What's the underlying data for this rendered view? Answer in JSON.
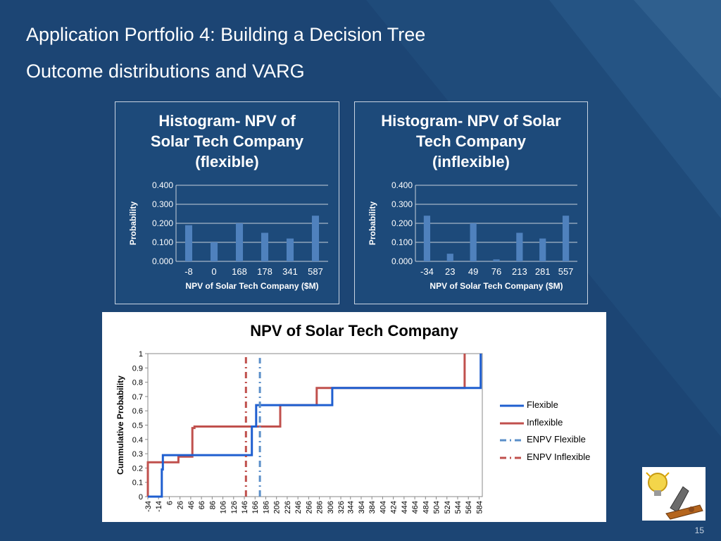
{
  "slide": {
    "title": "Application Portfolio 4: Building a Decision Tree",
    "subtitle": "Outcome distributions and VARG",
    "page_number": "15",
    "colors": {
      "background": "#1c4574",
      "bar": "#4f81bd",
      "flexible_line": "#1f5fd0",
      "inflexible_line": "#c0504d",
      "enpv_flexible": "#5b8fc9",
      "enpv_inflexible": "#c0504d"
    }
  },
  "chart_data": [
    {
      "type": "bar",
      "title": "Histogram- NPV of Solar Tech Company (flexible)",
      "xlabel": "NPV of Solar Tech Company ($M)",
      "ylabel": "Probability",
      "categories": [
        "-8",
        "0",
        "168",
        "178",
        "341",
        "587"
      ],
      "values": [
        0.19,
        0.1,
        0.2,
        0.15,
        0.12,
        0.24
      ],
      "ylim": [
        0,
        0.4
      ],
      "yticks": [
        "0.000",
        "0.100",
        "0.200",
        "0.300",
        "0.400"
      ],
      "grid": true
    },
    {
      "type": "bar",
      "title": "Histogram- NPV of Solar Tech Company (inflexible)",
      "xlabel": "NPV of Solar Tech Company ($M)",
      "ylabel": "Probability",
      "categories": [
        "-34",
        "23",
        "49",
        "76",
        "213",
        "281",
        "557"
      ],
      "values": [
        0.24,
        0.04,
        0.2,
        0.01,
        0.15,
        0.12,
        0.24
      ],
      "ylim": [
        0,
        0.4
      ],
      "yticks": [
        "0.000",
        "0.100",
        "0.200",
        "0.300",
        "0.400"
      ],
      "grid": true
    },
    {
      "type": "line",
      "title": "NPV of Solar Tech Company",
      "ylabel": "Cummulative Probability",
      "xticks": [
        "-34",
        "-14",
        "6",
        "26",
        "46",
        "66",
        "86",
        "106",
        "126",
        "146",
        "166",
        "186",
        "206",
        "226",
        "246",
        "266",
        "286",
        "306",
        "326",
        "344",
        "364",
        "384",
        "404",
        "424",
        "444",
        "464",
        "484",
        "504",
        "524",
        "544",
        "564",
        "584"
      ],
      "yticks": [
        "0",
        "0.1",
        "0.2",
        "0.3",
        "0.4",
        "0.5",
        "0.6",
        "0.7",
        "0.8",
        "0.9",
        "1"
      ],
      "xlim": [
        -34,
        590
      ],
      "ylim": [
        0,
        1
      ],
      "legend_position": "right",
      "series": [
        {
          "name": "Flexible",
          "style": "solid",
          "x": [
            -34,
            -8,
            -8,
            -6,
            -6,
            0,
            0,
            160,
            160,
            168,
            168,
            310,
            310,
            550,
            550,
            587,
            587
          ],
          "y": [
            0,
            0,
            0.19,
            0.19,
            0.29,
            0.29,
            0.29,
            0.29,
            0.49,
            0.49,
            0.64,
            0.64,
            0.76,
            0.76,
            0.76,
            0.76,
            1.0
          ]
        },
        {
          "name": "Inflexible",
          "style": "solid",
          "x": [
            -34,
            -34,
            23,
            23,
            28,
            28,
            49,
            49,
            53,
            53,
            76,
            76,
            200,
            200,
            213,
            213,
            281,
            281,
            557,
            557
          ],
          "y": [
            0,
            0.24,
            0.24,
            0.28,
            0.28,
            0.28,
            0.28,
            0.48,
            0.48,
            0.49,
            0.49,
            0.49,
            0.49,
            0.49,
            0.49,
            0.64,
            0.64,
            0.76,
            0.76,
            1.0
          ]
        },
        {
          "name": "ENPV Flexible",
          "style": "dash-dot",
          "x": [
            175,
            175
          ],
          "y": [
            0,
            0.97
          ]
        },
        {
          "name": "ENPV Inflexible",
          "style": "dash-dot",
          "x": [
            149,
            149
          ],
          "y": [
            0,
            1.0
          ]
        }
      ]
    }
  ]
}
